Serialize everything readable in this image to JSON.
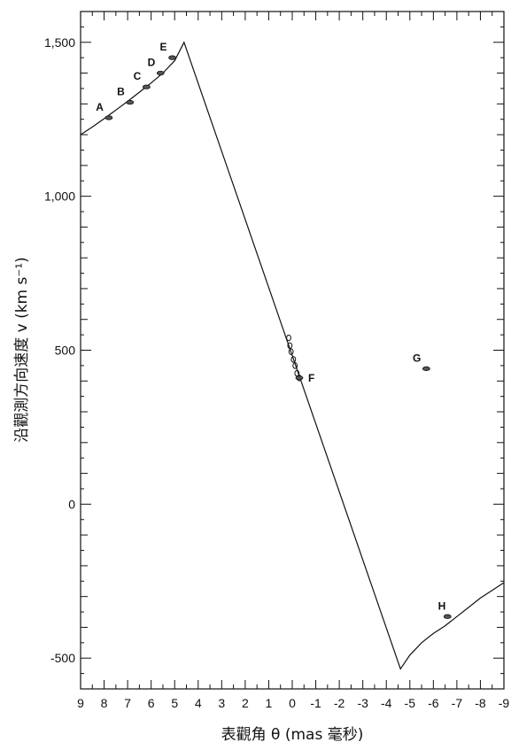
{
  "chart_data": {
    "type": "line",
    "xlabel": "表觀角 θ (mas 毫秒)",
    "ylabel": "沿觀測方向速度 v (km s⁻¹)",
    "xlim": [
      9,
      -9
    ],
    "ylim": [
      -600,
      1600
    ],
    "x_ticks": [
      "9",
      "8",
      "7",
      "6",
      "5",
      "4",
      "3",
      "2",
      "1",
      "0",
      "-1",
      "-2",
      "-3",
      "-4",
      "-5",
      "-6",
      "-7",
      "-8",
      "-9"
    ],
    "y_ticks": [
      {
        "value": 1500,
        "label": "1,500"
      },
      {
        "value": 1000,
        "label": "1,000"
      },
      {
        "value": 500,
        "label": "500"
      },
      {
        "value": 0,
        "label": "0"
      },
      {
        "value": -500,
        "label": "-500"
      }
    ],
    "series": [
      {
        "x": [
          9.0,
          8.5,
          8.0,
          7.5,
          7.0,
          6.5,
          6.0,
          5.5,
          5.0,
          4.8,
          4.6,
          -4.6,
          -5.0,
          -5.5,
          -6.0,
          -6.5,
          -7.0,
          -7.5,
          -8.0,
          -8.5,
          -9.0
        ],
        "y": [
          1200,
          1225,
          1252,
          1280,
          1308,
          1338,
          1368,
          1400,
          1440,
          1470,
          1500,
          -535,
          -490,
          -450,
          -420,
          -395,
          -365,
          -335,
          -305,
          -280,
          -255
        ]
      }
    ],
    "points": [
      {
        "label": "A",
        "x": 7.8,
        "y": 1255
      },
      {
        "label": "B",
        "x": 6.9,
        "y": 1305
      },
      {
        "label": "C",
        "x": 6.2,
        "y": 1355
      },
      {
        "label": "D",
        "x": 5.6,
        "y": 1400
      },
      {
        "label": "E",
        "x": 5.1,
        "y": 1450
      },
      {
        "label": "F",
        "x": -0.3,
        "y": 410
      },
      {
        "label": "G",
        "x": -5.7,
        "y": 440
      },
      {
        "label": "H",
        "x": -6.6,
        "y": -365
      }
    ],
    "f_cluster": [
      {
        "x": 0.15,
        "y": 540
      },
      {
        "x": 0.1,
        "y": 515
      },
      {
        "x": 0.05,
        "y": 495
      },
      {
        "x": -0.05,
        "y": 470
      },
      {
        "x": -0.12,
        "y": 450
      },
      {
        "x": -0.2,
        "y": 425
      },
      {
        "x": -0.3,
        "y": 410
      }
    ]
  }
}
